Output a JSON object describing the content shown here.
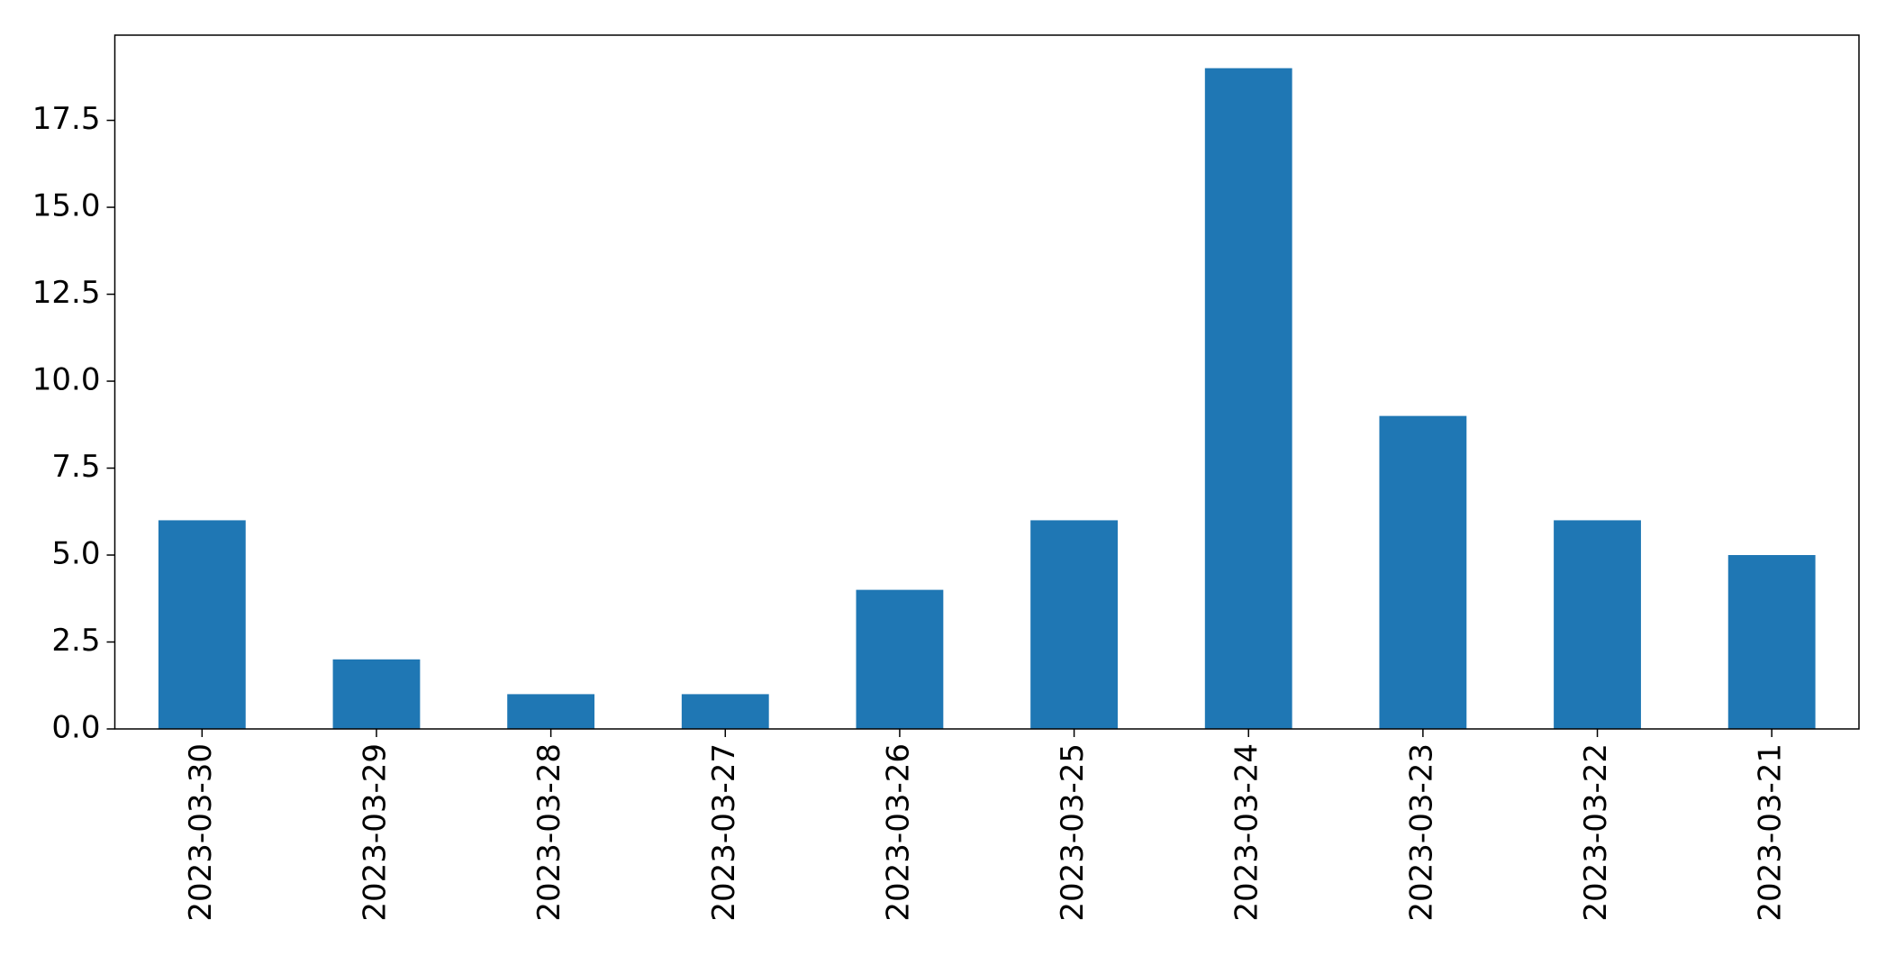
{
  "chart_data": {
    "type": "bar",
    "categories": [
      "2023-03-30",
      "2023-03-29",
      "2023-03-28",
      "2023-03-27",
      "2023-03-26",
      "2023-03-25",
      "2023-03-24",
      "2023-03-23",
      "2023-03-22",
      "2023-03-21"
    ],
    "values": [
      6,
      2,
      1,
      1,
      4,
      6,
      19,
      9,
      6,
      5
    ],
    "color": "#1f77b4",
    "ylim": [
      0,
      19.95
    ],
    "yticks": [
      {
        "value": 0,
        "label": "0.0"
      },
      2.5,
      {
        "value": 5,
        "label": "5.0"
      },
      7.5,
      {
        "value": 10,
        "label": "10.0"
      },
      12.5,
      {
        "value": 15,
        "label": "15.0"
      },
      17.5
    ],
    "grid": false
  }
}
